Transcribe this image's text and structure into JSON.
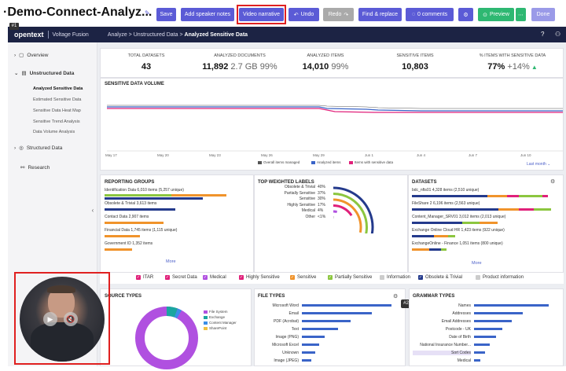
{
  "editor": {
    "title": "·Demo-Connect-Analyz...",
    "save": "Save",
    "add_speaker_notes": "Add speaker notes",
    "video_narrative": "Video narrative",
    "undo": "Undo",
    "redo": "Redo",
    "find_replace": "Find & replace",
    "comments": "0 comments",
    "preview": "Preview",
    "done": "Done",
    "step_badge": "#1"
  },
  "header": {
    "brand": "opentext",
    "product": "Voltage Fusion",
    "breadcrumb_1": "Analyze",
    "breadcrumb_2": "Unstructured Data",
    "breadcrumb_3": "Analyzed Sensitive Data"
  },
  "sidebar": {
    "overview": "Overview",
    "unstructured": "Unstructured Data",
    "sub": [
      "Analyzed Sensitive Data",
      "Estimated Sensitive Data",
      "Sensitive Data Heat Map",
      "Sensitive Trend Analysis",
      "Data Volume Analysis"
    ],
    "structured": "Structured Data",
    "research": "Research"
  },
  "kpis": [
    {
      "label": "TOTAL DATASETS",
      "value": "43",
      "sub": ""
    },
    {
      "label": "ANALYZED DOCUMENTS",
      "value": "11,892",
      "sub": "2.7 GB  99%"
    },
    {
      "label": "ANALYZED ITEMS",
      "value": "14,010",
      "sub": "99%"
    },
    {
      "label": "SENSITIVE ITEMS",
      "value": "10,803",
      "sub": ""
    },
    {
      "label": "% ITEMS WITH SENSITIVE DATA",
      "value": "77%",
      "sub": "+14%"
    }
  ],
  "volume": {
    "title": "SENSITIVE DATA VOLUME",
    "x_ticks": [
      "May 17",
      "May 20",
      "May 23",
      "May 26",
      "May 29",
      "Jun 1",
      "Jun 4",
      "Jun 7",
      "Jun 10"
    ],
    "legend": [
      "Overall items managed",
      "Analyzed items",
      "Items with sensitive data"
    ],
    "range": "Last month"
  },
  "reporting": {
    "title": "REPORTING GROUPS",
    "items": [
      {
        "label": "Identification Data  6,010 items (5,257 unique)",
        "top": 0.97,
        "bottom": 0.78
      },
      {
        "label": "Obsolete & Trivial  3,613 items",
        "top": 0.56,
        "bottom": 0.0
      },
      {
        "label": "Contact Data  2,907 items",
        "top": 0.47,
        "bottom": 0.0
      },
      {
        "label": "Financial Data  1,745 items (1,115 unique)",
        "top": 0.28,
        "bottom": 0.0
      },
      {
        "label": "Government ID  1,352 items",
        "top": 0.22,
        "bottom": 0.0
      }
    ],
    "more": "More"
  },
  "weighted": {
    "title": "TOP WEIGHTED LABELS",
    "items": [
      {
        "label": "Obsolete & Trivial",
        "pct": "40%",
        "value": 0.4
      },
      {
        "label": "Partially Sensitive",
        "pct": "37%",
        "value": 0.37
      },
      {
        "label": "Sensitive",
        "pct": "30%",
        "value": 0.3
      },
      {
        "label": "Highly Sensitive",
        "pct": "17%",
        "value": 0.17
      },
      {
        "label": "Medical",
        "pct": "4%",
        "value": 0.04
      },
      {
        "label": "Other",
        "pct": "<1%",
        "value": 0.01
      }
    ]
  },
  "datasets": {
    "title": "DATASETS",
    "items": [
      {
        "label": "bdc_nfts01  4,328 items (2,510 unique)"
      },
      {
        "label": "FileShare 2  6,196 items (2,563 unique)"
      },
      {
        "label": "Content_Manager_SRV01  3,012 items (2,013 unique)"
      },
      {
        "label": "Exchange Online Cloud HR  1,423 items (922 unique)"
      },
      {
        "label": "ExchangeOnline - Finance  1,051 items (800 unique)"
      }
    ],
    "more": "More"
  },
  "filters": [
    "ITAR",
    "Secret Data",
    "Medical",
    "Highly Sensitive",
    "Sensitive",
    "Partially Sensitive",
    "Information",
    "Obsolete & Trivial",
    "Product information"
  ],
  "source_types": {
    "title": "SOURCE TYPES",
    "legend": [
      "File System",
      "Exchange",
      "Content Manager",
      "SharePoint"
    ]
  },
  "file_types": {
    "title": "FILE TYPES",
    "items": [
      {
        "label": "Microsoft Word",
        "value": 0.95
      },
      {
        "label": "Email",
        "value": 0.74
      },
      {
        "label": "PDF (Acrobat)",
        "value": 0.52
      },
      {
        "label": "Text",
        "value": 0.38
      },
      {
        "label": "Image (PNG)",
        "value": 0.24
      },
      {
        "label": "Microsoft Excel",
        "value": 0.18
      },
      {
        "label": "Unknown",
        "value": 0.14
      },
      {
        "label": "Image (JPEG)",
        "value": 0.1
      }
    ],
    "badge": "#2"
  },
  "grammar_types": {
    "title": "GRAMMAR TYPES",
    "items": [
      {
        "label": "Names",
        "value": 0.95
      },
      {
        "label": "Addresses",
        "value": 0.62
      },
      {
        "label": "Email Addresses",
        "value": 0.48
      },
      {
        "label": "Postcode - UK",
        "value": 0.36
      },
      {
        "label": "Date of Birth",
        "value": 0.28
      },
      {
        "label": "National Insurance Number...",
        "value": 0.2
      },
      {
        "label": "Sort Codes",
        "value": 0.14
      },
      {
        "label": "Medical",
        "value": 0.08
      }
    ]
  },
  "colors": {
    "accent": "#5b5bd6",
    "navy": "#1c2344",
    "blue": "#3a64c8",
    "green": "#8cc63f",
    "orange": "#f0932b",
    "pink": "#e0207a",
    "purple": "#b050e0",
    "teal": "#1aa5a0",
    "darkblue": "#243a8c"
  }
}
